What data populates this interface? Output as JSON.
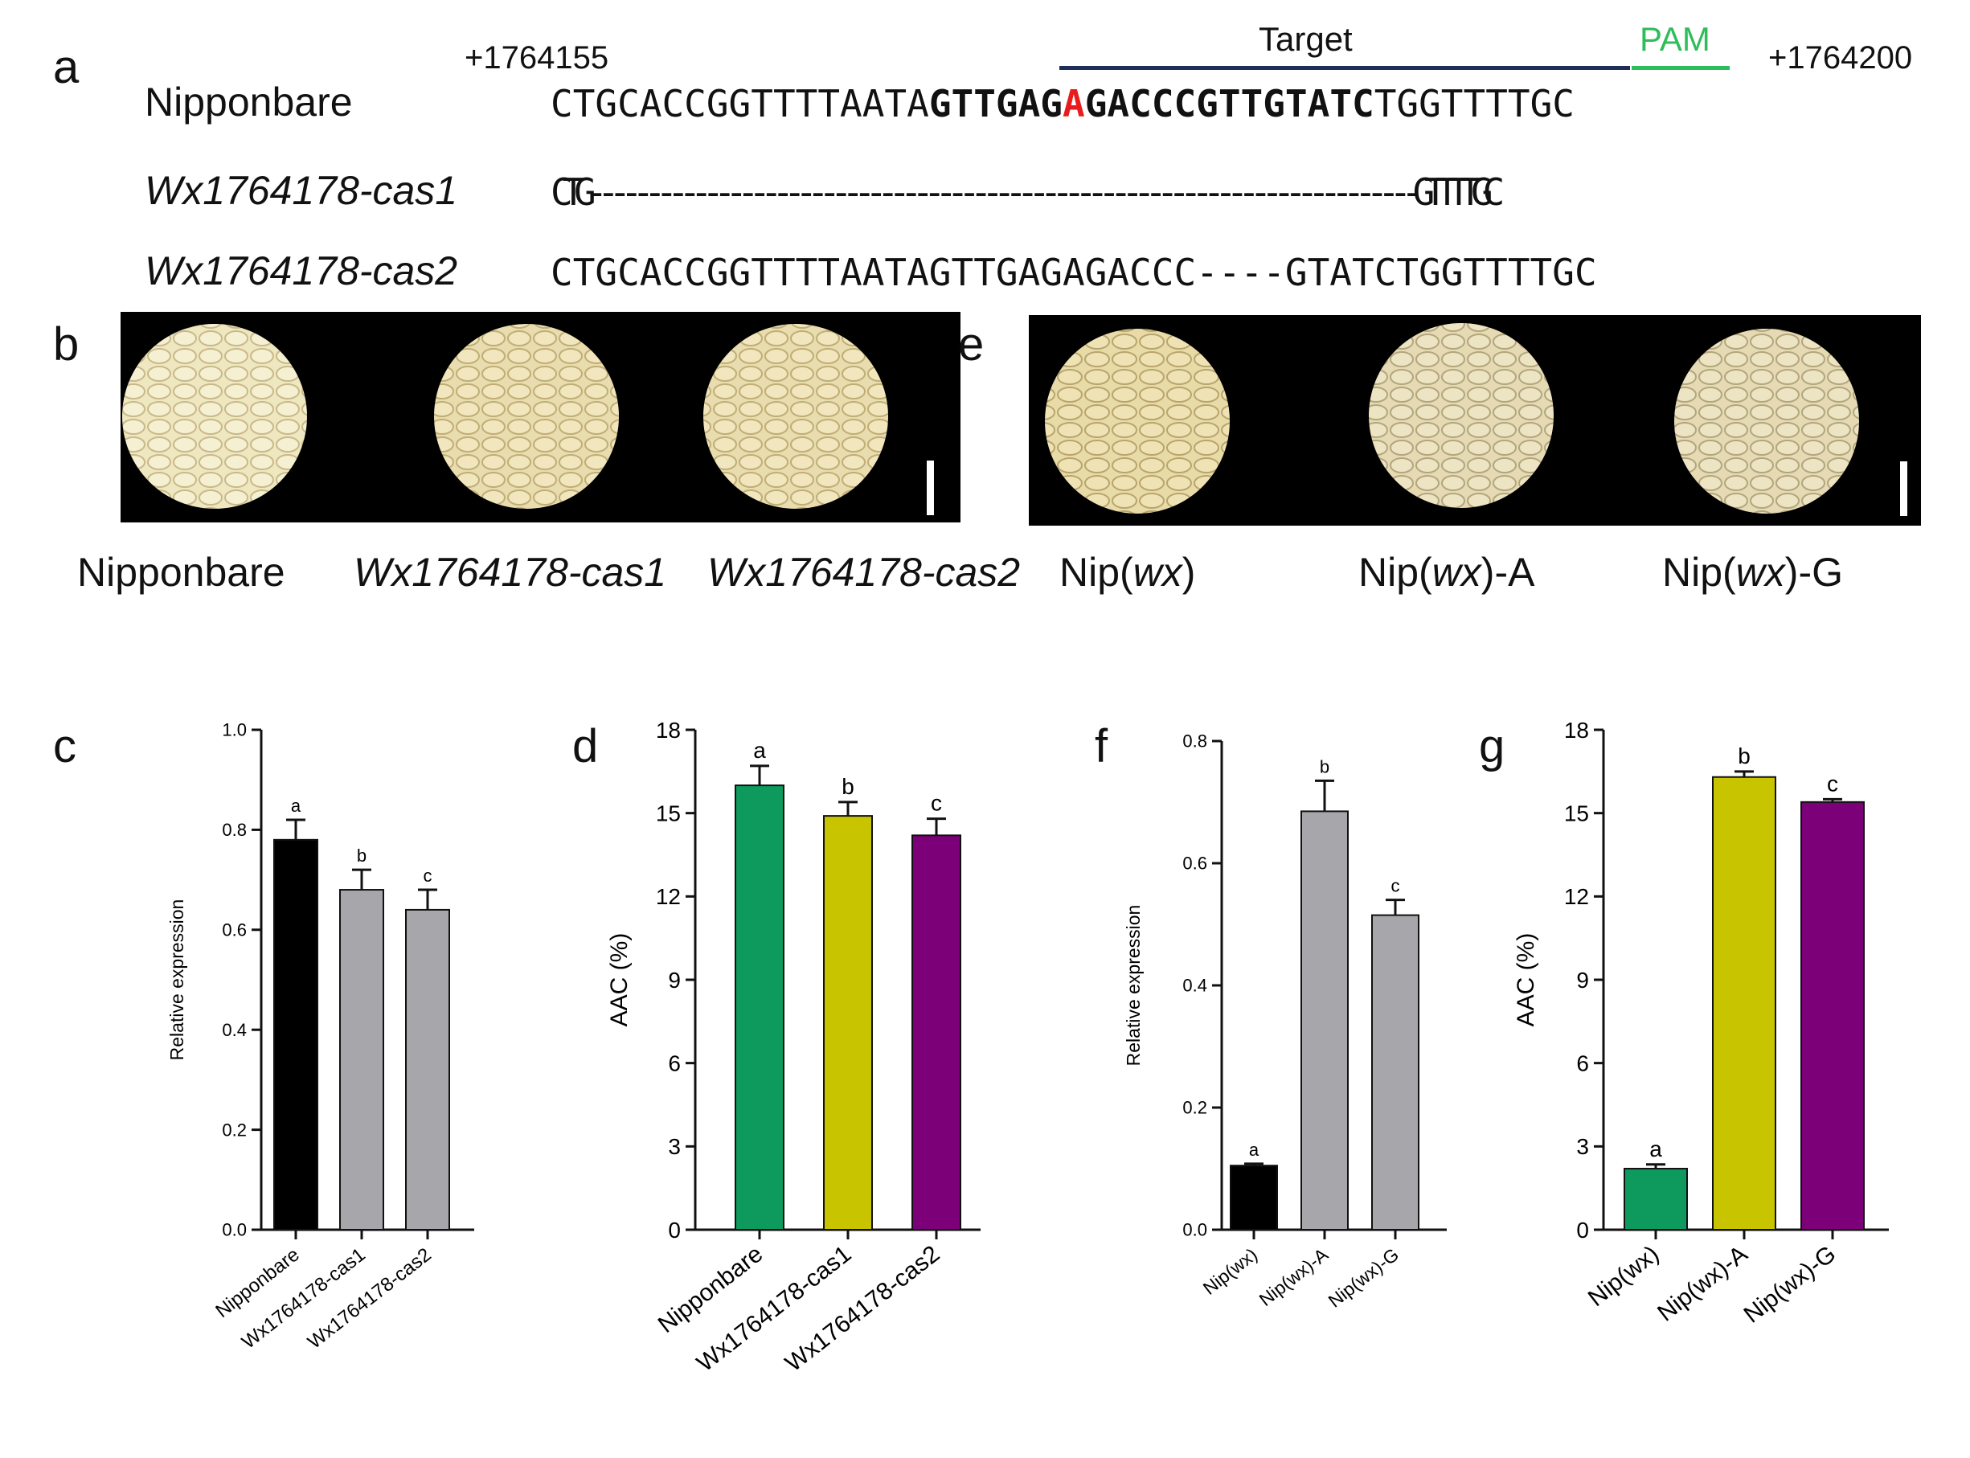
{
  "panels": {
    "a": "a",
    "b": "b",
    "c": "c",
    "d": "d",
    "e": "e",
    "f": "f",
    "g": "g"
  },
  "panel_a": {
    "pos_start": "+1764155",
    "pos_end": "+1764200",
    "target_label": "Target",
    "pam_label": "PAM",
    "colors": {
      "target_line": "#1f2d5a",
      "pam": "#2ebd5a",
      "snp": "#e81c1c"
    },
    "rows": [
      {
        "name": "Nipponbare",
        "italic": false,
        "seq_pre": "CTGCACCGGTTTTAATA",
        "seq_bold1": "GTTGAG",
        "seq_red": "A",
        "seq_bold2": "GACCCGTTGTATC",
        "seq_post": "TGGTTTTGC"
      },
      {
        "name": "Wx1764178-cas1",
        "italic": true,
        "seq": "CTG-----------------------------------------------------------------------GTTTTGC"
      },
      {
        "name": "Wx1764178-cas2",
        "italic": true,
        "seq": "CTGCACCGGTTTTAATAGTTGAGAGACCC----GTATCTGGTTTTGC"
      }
    ]
  },
  "panel_b": {
    "captions": [
      {
        "text": "Nipponbare",
        "italic": false
      },
      {
        "text": "Wx1764178-cas1",
        "italic": true
      },
      {
        "text": "Wx1764178-cas2",
        "italic": true
      }
    ]
  },
  "panel_e": {
    "caption_parts": [
      {
        "pre": "Nip(",
        "it": "wx",
        "post": ")"
      },
      {
        "pre": "Nip(",
        "it": "wx",
        "post": ")-A"
      },
      {
        "pre": "Nip(",
        "it": "wx",
        "post": ")-G"
      }
    ]
  },
  "chart_data": [
    {
      "panel": "c",
      "type": "bar",
      "categories": [
        "Nipponbare",
        "Wx1764178-cas1",
        "Wx1764178-cas2"
      ],
      "values": [
        0.78,
        0.68,
        0.64
      ],
      "errors": [
        0.04,
        0.04,
        0.04
      ],
      "letters": [
        "a",
        "b",
        "c"
      ],
      "colors": [
        "#000000",
        "#a7a7ab",
        "#a7a7ab"
      ],
      "ylabel": "Relative expression",
      "ylim": [
        0,
        1.0
      ],
      "yticks": [
        "0.0",
        "0.2",
        "0.4",
        "0.6",
        "0.8",
        "1.0"
      ]
    },
    {
      "panel": "d",
      "type": "bar",
      "categories": [
        "Nipponbare",
        "Wx1764178-cas1",
        "Wx1764178-cas2"
      ],
      "values": [
        16.0,
        14.9,
        14.2
      ],
      "errors": [
        0.7,
        0.5,
        0.6
      ],
      "letters": [
        "a",
        "b",
        "c"
      ],
      "colors": [
        "#0e9a5c",
        "#c9c400",
        "#7c0077"
      ],
      "ylabel": "AAC (%)",
      "ylim": [
        0,
        18
      ],
      "yticks": [
        "0",
        "3",
        "6",
        "9",
        "12",
        "15",
        "18"
      ]
    },
    {
      "panel": "f",
      "type": "bar",
      "categories": [
        "Nip(wx)",
        "Nip(wx)-A",
        "Nip(wx)-G"
      ],
      "values": [
        0.105,
        0.685,
        0.515
      ],
      "errors": [
        0.003,
        0.05,
        0.025
      ],
      "letters": [
        "a",
        "b",
        "c"
      ],
      "colors": [
        "#000000",
        "#a7a7ab",
        "#a7a7ab"
      ],
      "ylabel": "Relative expression",
      "ylim": [
        0,
        0.8
      ],
      "yticks": [
        "0.0",
        "0.2",
        "0.4",
        "0.6",
        "0.8"
      ]
    },
    {
      "panel": "g",
      "type": "bar",
      "categories": [
        "Nip(wx)",
        "Nip(wx)-A",
        "Nip(wx)-G"
      ],
      "values": [
        2.2,
        16.3,
        15.4
      ],
      "errors": [
        0.15,
        0.2,
        0.1
      ],
      "letters": [
        "a",
        "b",
        "c"
      ],
      "colors": [
        "#0e9a5c",
        "#c9c400",
        "#7c0077"
      ],
      "ylabel": "AAC (%)",
      "ylim": [
        0,
        18
      ],
      "yticks": [
        "0",
        "3",
        "6",
        "9",
        "12",
        "15",
        "18"
      ]
    }
  ]
}
